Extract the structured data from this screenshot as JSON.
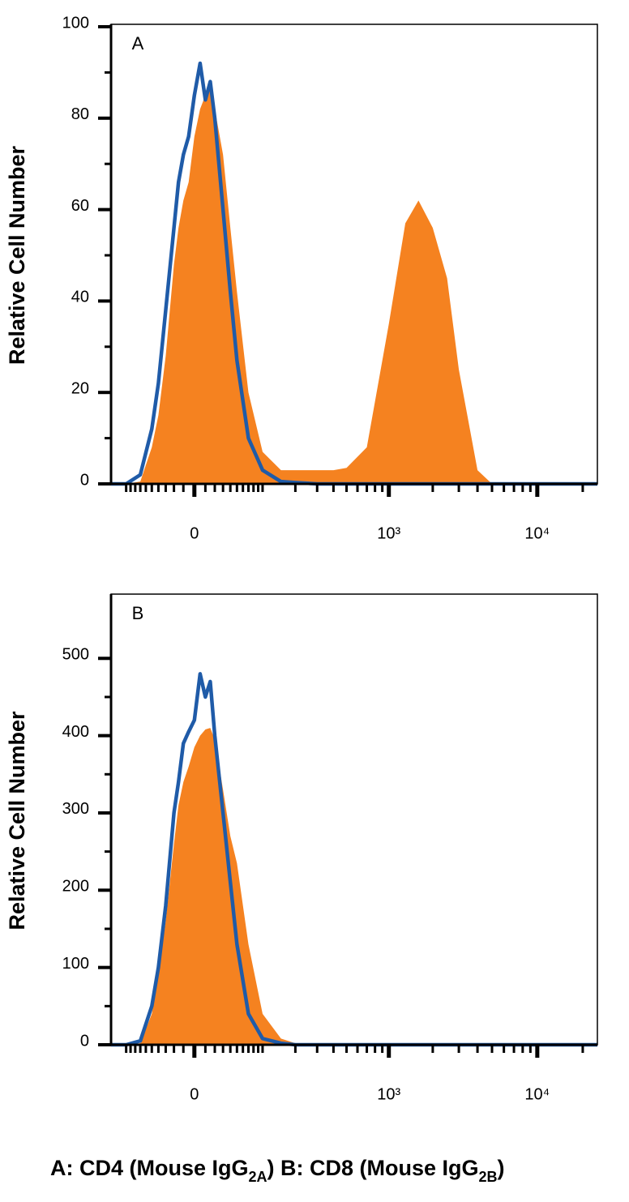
{
  "chart_data": [
    {
      "type": "area",
      "panel_label": "A",
      "ylabel": "Relative Cell Number",
      "xscale": "biexponential",
      "x": [
        -140,
        -100,
        -70,
        -50,
        -40,
        -30,
        -20,
        -15,
        -10,
        -5,
        0,
        5,
        10,
        15,
        20,
        30,
        40,
        50,
        70,
        100,
        150,
        200,
        300,
        400,
        500,
        700,
        1000,
        1300,
        1600,
        2000,
        2500,
        3000,
        4000,
        5000,
        7000,
        10000,
        15000,
        25000
      ],
      "series": [
        {
          "kind": "area",
          "color": "#f58220",
          "values": [
            0,
            0,
            0.5,
            8,
            15,
            28,
            48,
            56,
            62,
            66,
            76,
            82,
            85,
            86,
            82,
            72,
            56,
            42,
            20,
            7,
            3,
            3,
            3,
            3,
            3.5,
            8,
            35,
            57,
            62,
            56,
            45,
            25,
            3,
            0,
            0,
            0,
            0,
            0
          ]
        },
        {
          "kind": "line",
          "color": "#1f5ba8",
          "values": [
            0,
            0,
            2,
            12,
            22,
            38,
            56,
            66,
            72,
            76,
            85,
            92,
            84,
            88,
            80,
            60,
            42,
            27,
            10,
            3,
            0.5,
            0.3,
            0,
            0,
            0,
            0,
            0,
            0,
            0,
            0,
            0,
            0,
            0,
            0,
            0,
            0,
            0,
            0
          ]
        }
      ],
      "xlim": [
        -140,
        25000
      ],
      "xticks": [
        0,
        {
          "value": 1000,
          "label": "10³"
        },
        {
          "value": 10000,
          "label": "10⁴"
        }
      ],
      "xminorticks": [
        -100,
        -90,
        -80,
        -70,
        -60,
        -50,
        -40,
        -30,
        -20,
        -10,
        10,
        20,
        30,
        40,
        50,
        60,
        70,
        80,
        90,
        100,
        200,
        300,
        400,
        500,
        600,
        700,
        800,
        900,
        2000,
        3000,
        4000,
        5000,
        6000,
        7000,
        8000,
        9000,
        20000
      ],
      "ylim": [
        0,
        100
      ],
      "yticks": [
        0,
        20,
        40,
        60,
        80,
        100
      ]
    },
    {
      "type": "area",
      "panel_label": "B",
      "ylabel": "Relative Cell Number",
      "xscale": "biexponential",
      "x": [
        -140,
        -100,
        -70,
        -50,
        -40,
        -30,
        -20,
        -15,
        -10,
        -5,
        0,
        5,
        10,
        15,
        20,
        30,
        40,
        50,
        70,
        100,
        150,
        200,
        300,
        400,
        500,
        700,
        1000,
        1300,
        1600,
        2000,
        2500,
        3000,
        4000,
        5000,
        7000,
        10000,
        15000,
        25000
      ],
      "series": [
        {
          "kind": "area",
          "color": "#f58220",
          "values": [
            0,
            0,
            2,
            40,
            90,
            160,
            260,
            310,
            340,
            360,
            385,
            400,
            408,
            410,
            395,
            330,
            270,
            235,
            130,
            40,
            8,
            2,
            0,
            0,
            0,
            0,
            0,
            0,
            0,
            0,
            0,
            0,
            0,
            0,
            0,
            0,
            0,
            0
          ]
        },
        {
          "kind": "line",
          "color": "#1f5ba8",
          "values": [
            0,
            0,
            5,
            50,
            100,
            180,
            300,
            340,
            390,
            405,
            420,
            480,
            450,
            470,
            400,
            300,
            210,
            130,
            40,
            8,
            2,
            0,
            0,
            0,
            0,
            0,
            0,
            0,
            0,
            0,
            0,
            0,
            0,
            0,
            0,
            0,
            0,
            0
          ]
        }
      ],
      "xlim": [
        -140,
        25000
      ],
      "xticks": [
        0,
        {
          "value": 1000,
          "label": "10³"
        },
        {
          "value": 10000,
          "label": "10⁴"
        }
      ],
      "xminorticks": [
        -100,
        -90,
        -80,
        -70,
        -60,
        -50,
        -40,
        -30,
        -20,
        -10,
        10,
        20,
        30,
        40,
        50,
        60,
        70,
        80,
        90,
        100,
        200,
        300,
        400,
        500,
        600,
        700,
        800,
        900,
        2000,
        3000,
        4000,
        5000,
        6000,
        7000,
        8000,
        9000,
        20000
      ],
      "ylim": [
        0,
        580
      ],
      "yticks": [
        0,
        100,
        200,
        300,
        400,
        500
      ]
    }
  ],
  "caption": [
    "A: CD4 (Mouse IgG",
    "2A",
    ") B: CD8 (Mouse IgG",
    "2B",
    ")"
  ]
}
